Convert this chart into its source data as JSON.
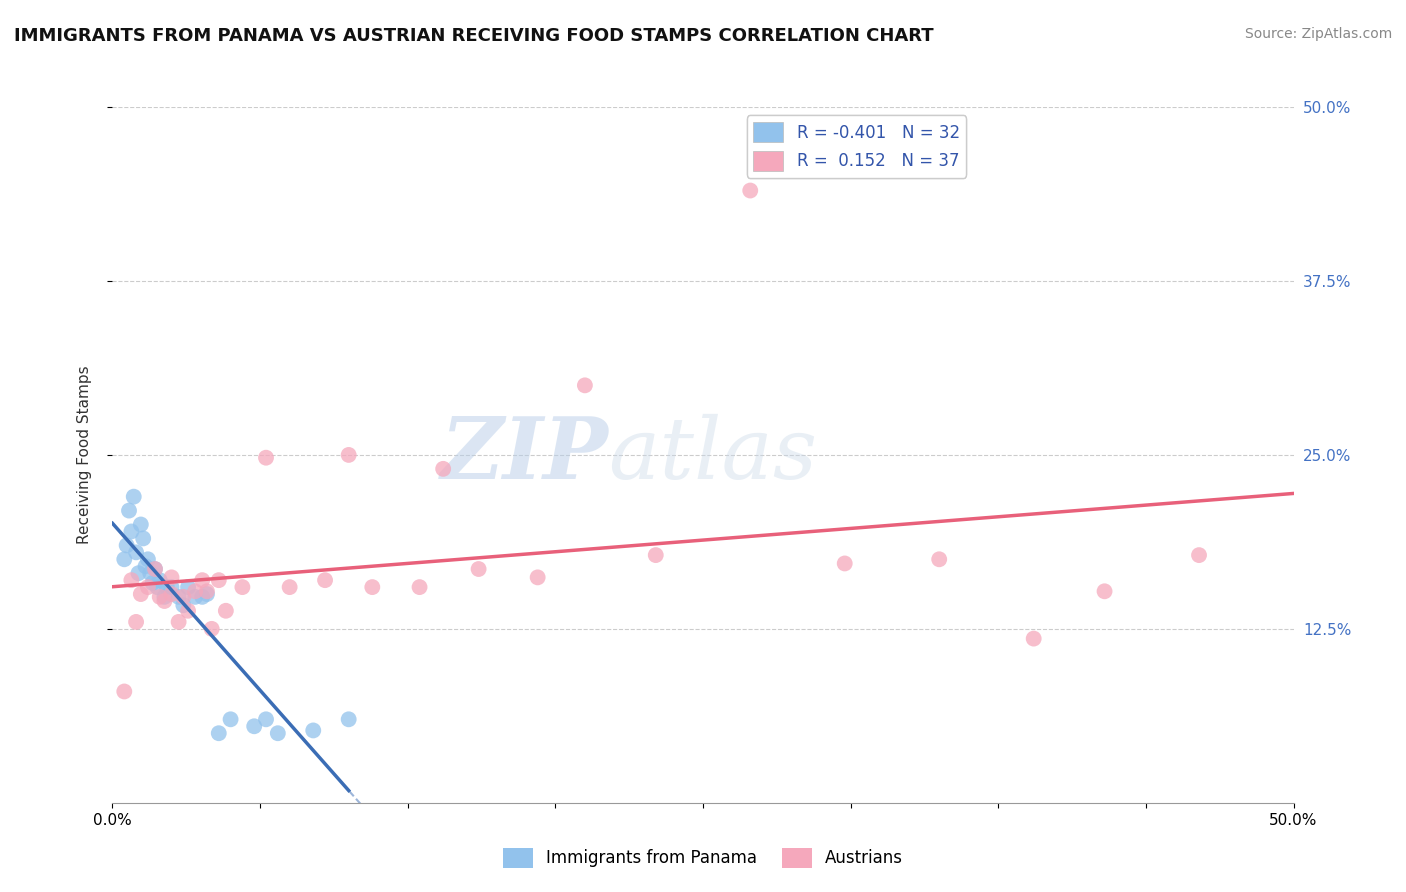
{
  "title": "IMMIGRANTS FROM PANAMA VS AUSTRIAN RECEIVING FOOD STAMPS CORRELATION CHART",
  "source": "Source: ZipAtlas.com",
  "ylabel": "Receiving Food Stamps",
  "xlim": [
    0,
    0.5
  ],
  "ylim": [
    0,
    0.5
  ],
  "xtick_vals": [
    0.0,
    0.0625,
    0.125,
    0.1875,
    0.25,
    0.3125,
    0.375,
    0.4375,
    0.5
  ],
  "ytick_vals": [
    0.125,
    0.25,
    0.375,
    0.5
  ],
  "legend_labels": [
    "Immigrants from Panama",
    "Austrians"
  ],
  "legend_R": [
    -0.401,
    0.152
  ],
  "legend_N": [
    32,
    37
  ],
  "blue_color": "#92C2EC",
  "pink_color": "#F5A8BC",
  "blue_line_color": "#3B6DB5",
  "pink_line_color": "#E8607A",
  "watermark_zip": "ZIP",
  "watermark_atlas": "atlas",
  "panama_x": [
    0.005,
    0.006,
    0.007,
    0.008,
    0.009,
    0.01,
    0.011,
    0.012,
    0.013,
    0.014,
    0.015,
    0.016,
    0.017,
    0.018,
    0.019,
    0.02,
    0.022,
    0.023,
    0.025,
    0.028,
    0.03,
    0.032,
    0.035,
    0.038,
    0.04,
    0.045,
    0.05,
    0.06,
    0.065,
    0.07,
    0.085,
    0.1
  ],
  "panama_y": [
    0.175,
    0.185,
    0.21,
    0.195,
    0.22,
    0.18,
    0.165,
    0.2,
    0.19,
    0.17,
    0.175,
    0.165,
    0.158,
    0.168,
    0.155,
    0.16,
    0.148,
    0.155,
    0.155,
    0.148,
    0.142,
    0.155,
    0.148,
    0.148,
    0.15,
    0.05,
    0.06,
    0.055,
    0.06,
    0.05,
    0.052,
    0.06
  ],
  "austrian_x": [
    0.005,
    0.008,
    0.01,
    0.012,
    0.015,
    0.018,
    0.02,
    0.022,
    0.025,
    0.025,
    0.028,
    0.03,
    0.032,
    0.035,
    0.038,
    0.04,
    0.042,
    0.045,
    0.048,
    0.055,
    0.065,
    0.075,
    0.09,
    0.1,
    0.11,
    0.13,
    0.14,
    0.155,
    0.18,
    0.2,
    0.23,
    0.27,
    0.31,
    0.35,
    0.39,
    0.42,
    0.46
  ],
  "austrian_y": [
    0.08,
    0.16,
    0.13,
    0.15,
    0.155,
    0.168,
    0.148,
    0.145,
    0.15,
    0.162,
    0.13,
    0.148,
    0.138,
    0.152,
    0.16,
    0.152,
    0.125,
    0.16,
    0.138,
    0.155,
    0.248,
    0.155,
    0.16,
    0.25,
    0.155,
    0.155,
    0.24,
    0.168,
    0.162,
    0.3,
    0.178,
    0.44,
    0.172,
    0.175,
    0.118,
    0.152,
    0.178
  ]
}
